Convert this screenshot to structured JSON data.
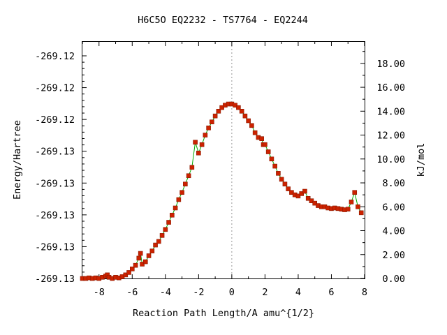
{
  "chart_data": {
    "type": "scatter",
    "title": "H6C5O   EQ2232 - TS7764 - EQ2244",
    "xlabel": "Reaction Path Length/A amu^{1/2}",
    "ylabel_left": "Energy/Hartree",
    "ylabel_right": "kJ/mol",
    "xlim": [
      -9.0,
      8.0
    ],
    "ylim_right": [
      0.0,
      19.8
    ],
    "x_ticks": [
      "-8",
      "-6",
      "-4",
      "-2",
      "0",
      "2",
      "4",
      "6",
      "8"
    ],
    "left_y_ticks": [
      "-269.12",
      "-269.12",
      "-269.12",
      "-269.13",
      "-269.13",
      "-269.13",
      "-269.13",
      "-269.13"
    ],
    "right_y_ticks": [
      "0.00",
      "2.00",
      "4.00",
      "6.00",
      "8.00",
      "10.00",
      "12.00",
      "14.00",
      "16.00",
      "18.00"
    ],
    "ts_marker_x": 0.0,
    "grid": false,
    "colors": {
      "points": "#cc2200",
      "line": "#00aa00",
      "ts_line": "#999999"
    },
    "series": [
      {
        "points": [
          [
            -9.0,
            0.0
          ],
          [
            -8.8,
            0.0
          ],
          [
            -8.6,
            0.05
          ],
          [
            -8.4,
            0.0
          ],
          [
            -8.2,
            0.05
          ],
          [
            -8.0,
            0.0
          ],
          [
            -7.8,
            0.1
          ],
          [
            -7.6,
            0.2
          ],
          [
            -7.5,
            0.3
          ],
          [
            -7.4,
            0.1
          ],
          [
            -7.2,
            0.0
          ],
          [
            -7.0,
            0.1
          ],
          [
            -6.8,
            0.05
          ],
          [
            -6.6,
            0.15
          ],
          [
            -6.4,
            0.3
          ],
          [
            -6.2,
            0.5
          ],
          [
            -6.0,
            0.8
          ],
          [
            -5.8,
            1.1
          ],
          [
            -5.6,
            1.7
          ],
          [
            -5.5,
            2.1
          ],
          [
            -5.4,
            1.2
          ],
          [
            -5.2,
            1.4
          ],
          [
            -5.0,
            1.9
          ],
          [
            -4.8,
            2.3
          ],
          [
            -4.6,
            2.8
          ],
          [
            -4.4,
            3.1
          ],
          [
            -4.2,
            3.6
          ],
          [
            -4.0,
            4.1
          ],
          [
            -3.8,
            4.7
          ],
          [
            -3.6,
            5.3
          ],
          [
            -3.4,
            5.9
          ],
          [
            -3.2,
            6.6
          ],
          [
            -3.0,
            7.2
          ],
          [
            -2.8,
            7.9
          ],
          [
            -2.6,
            8.6
          ],
          [
            -2.4,
            9.3
          ],
          [
            -2.2,
            11.4
          ],
          [
            -2.0,
            10.5
          ],
          [
            -1.8,
            11.2
          ],
          [
            -1.6,
            12.0
          ],
          [
            -1.4,
            12.6
          ],
          [
            -1.2,
            13.1
          ],
          [
            -1.0,
            13.6
          ],
          [
            -0.8,
            14.0
          ],
          [
            -0.6,
            14.3
          ],
          [
            -0.4,
            14.5
          ],
          [
            -0.2,
            14.6
          ],
          [
            0.0,
            14.6
          ],
          [
            0.2,
            14.5
          ],
          [
            0.4,
            14.3
          ],
          [
            0.6,
            14.0
          ],
          [
            0.8,
            13.6
          ],
          [
            1.0,
            13.2
          ],
          [
            1.2,
            12.8
          ],
          [
            1.4,
            12.2
          ],
          [
            1.6,
            11.8
          ],
          [
            1.8,
            11.7
          ],
          [
            1.9,
            11.2
          ],
          [
            2.0,
            11.2
          ],
          [
            2.2,
            10.6
          ],
          [
            2.4,
            10.0
          ],
          [
            2.6,
            9.4
          ],
          [
            2.8,
            8.8
          ],
          [
            3.0,
            8.3
          ],
          [
            3.2,
            7.9
          ],
          [
            3.4,
            7.5
          ],
          [
            3.6,
            7.2
          ],
          [
            3.8,
            7.0
          ],
          [
            4.0,
            6.9
          ],
          [
            4.2,
            7.1
          ],
          [
            4.4,
            7.3
          ],
          [
            4.6,
            6.7
          ],
          [
            4.8,
            6.5
          ],
          [
            5.0,
            6.3
          ],
          [
            5.2,
            6.1
          ],
          [
            5.4,
            6.0
          ],
          [
            5.6,
            6.0
          ],
          [
            5.8,
            5.9
          ],
          [
            6.0,
            5.85
          ],
          [
            6.2,
            5.9
          ],
          [
            6.4,
            5.85
          ],
          [
            6.6,
            5.8
          ],
          [
            6.8,
            5.75
          ],
          [
            7.0,
            5.8
          ],
          [
            7.2,
            6.4
          ],
          [
            7.4,
            7.2
          ],
          [
            7.6,
            6.0
          ],
          [
            7.8,
            5.5
          ]
        ]
      }
    ]
  }
}
